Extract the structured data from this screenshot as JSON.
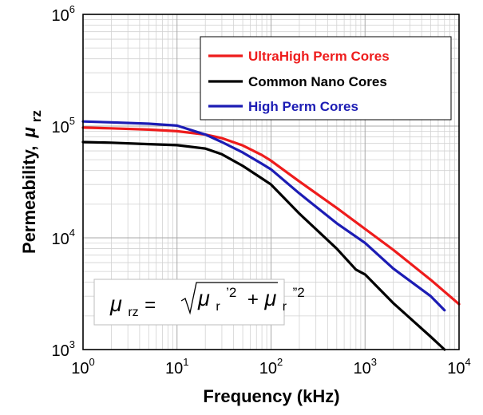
{
  "chart_data": {
    "type": "line",
    "x_scale": "log",
    "y_scale": "log",
    "xlim": [
      1,
      10000
    ],
    "ylim": [
      1000,
      1000000
    ],
    "grid": true,
    "xlabel": "Frequency (kHz)",
    "ylabel_main": "Permeability,",
    "ylabel_symbol": "μ",
    "ylabel_sub": "rz",
    "x_ticks": [
      {
        "value": 1,
        "base": "10",
        "exp": "0"
      },
      {
        "value": 10,
        "base": "10",
        "exp": "1"
      },
      {
        "value": 100,
        "base": "10",
        "exp": "2"
      },
      {
        "value": 1000,
        "base": "10",
        "exp": "3"
      },
      {
        "value": 10000,
        "base": "10",
        "exp": "4"
      }
    ],
    "y_ticks": [
      {
        "value": 1000,
        "base": "10",
        "exp": "3"
      },
      {
        "value": 10000,
        "base": "10",
        "exp": "4"
      },
      {
        "value": 100000,
        "base": "10",
        "exp": "5"
      },
      {
        "value": 1000000,
        "base": "10",
        "exp": "6"
      }
    ],
    "legend_position": "top-right",
    "series": [
      {
        "name": "UltraHigh Perm Cores",
        "color": "#ee1c1c",
        "x": [
          1,
          2,
          5,
          10,
          20,
          30,
          50,
          80,
          100,
          200,
          500,
          1000,
          2000,
          5000,
          10000
        ],
        "y": [
          97000,
          95500,
          93000,
          90000,
          84000,
          78000,
          67000,
          55000,
          49000,
          32000,
          18500,
          12000,
          7800,
          4200,
          2550
        ]
      },
      {
        "name": "Common Nano Cores",
        "color": "#000000",
        "x": [
          1,
          2,
          5,
          10,
          20,
          30,
          50,
          80,
          100,
          200,
          500,
          800,
          1000,
          2000,
          5000,
          7000
        ],
        "y": [
          72000,
          71000,
          69000,
          67500,
          63000,
          56000,
          44000,
          34000,
          30000,
          16500,
          8000,
          5200,
          4700,
          2600,
          1300,
          1000
        ]
      },
      {
        "name": "High Perm Cores",
        "color": "#1c1cb4",
        "x": [
          1,
          2,
          5,
          10,
          20,
          30,
          50,
          80,
          100,
          200,
          500,
          1000,
          2000,
          5000,
          7000
        ],
        "y": [
          110000,
          108000,
          105000,
          101000,
          84000,
          72000,
          58000,
          46000,
          41000,
          25000,
          13500,
          9000,
          5300,
          3000,
          2250
        ]
      }
    ]
  },
  "formula": {
    "lhs_symbol": "μ",
    "lhs_sub": "rz",
    "equals": "=",
    "term1_symbol": "μ",
    "term1_sub": "r",
    "term1_prime": "’2",
    "plus": "+",
    "term2_symbol": "μ",
    "term2_sub": "r",
    "term2_prime": "”2"
  }
}
